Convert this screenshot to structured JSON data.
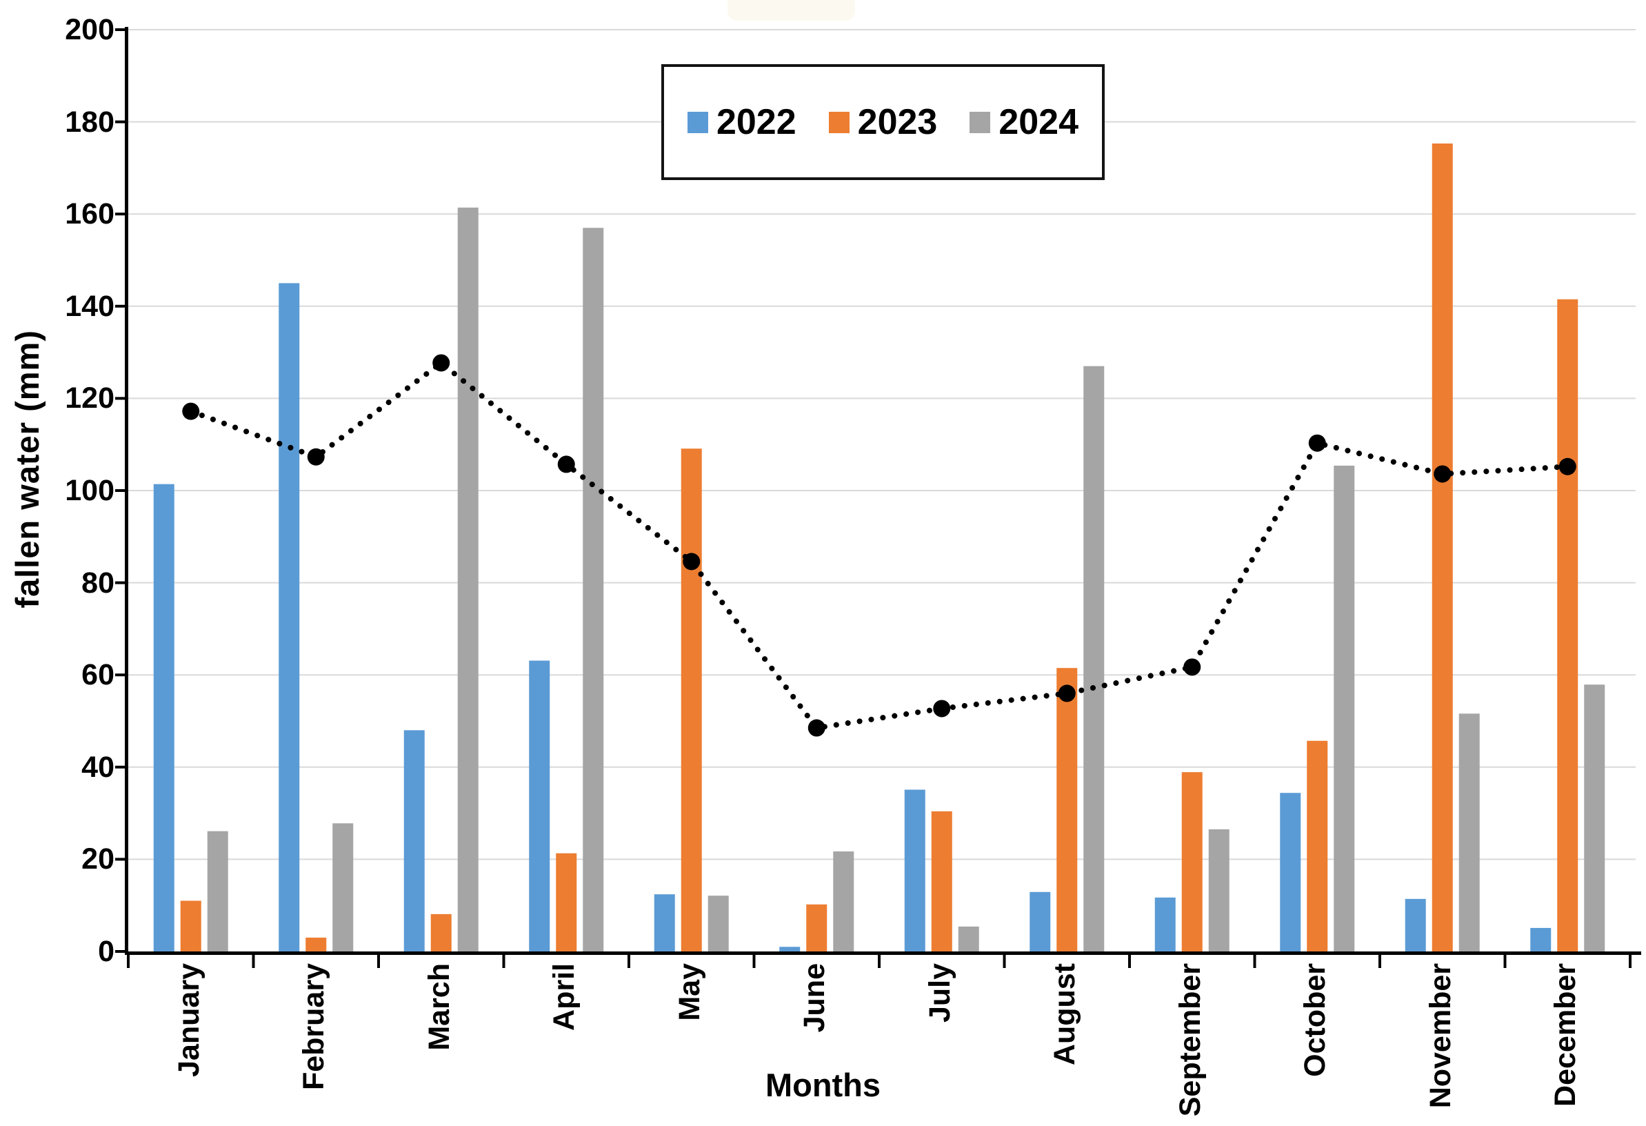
{
  "chart_data": {
    "type": "bar",
    "title": "",
    "xlabel": "Months",
    "ylabel": "fallen water (mm)",
    "ylim": [
      0,
      200
    ],
    "ytick_step": 20,
    "grid": true,
    "legend_position": "top-center",
    "legend_entries": [
      "2022",
      "2023",
      "2024"
    ],
    "categories": [
      "January",
      "February",
      "March",
      "April",
      "May",
      "June",
      "July",
      "August",
      "September",
      "October",
      "November",
      "December"
    ],
    "series": [
      {
        "name": "2022",
        "type": "bar",
        "color": "#5B9BD5",
        "values": [
          101.4,
          145.0,
          48.0,
          63.1,
          12.4,
          1.0,
          35.1,
          12.9,
          11.7,
          34.4,
          11.4,
          5.1
        ]
      },
      {
        "name": "2023",
        "type": "bar",
        "color": "#ED7D31",
        "values": [
          11.0,
          3.0,
          8.1,
          21.3,
          109.1,
          10.2,
          30.4,
          61.5,
          38.9,
          45.7,
          175.3,
          141.5
        ]
      },
      {
        "name": "2024",
        "type": "bar",
        "color": "#A5A5A5",
        "values": [
          26.1,
          27.8,
          161.4,
          157.0,
          12.1,
          21.7,
          5.4,
          127.0,
          26.5,
          105.4,
          51.6,
          57.9
        ]
      },
      {
        "name": "unlabeled dotted line (monthly mean)",
        "type": "line",
        "color": "#000000",
        "line_style": "dotted",
        "marker": "circle",
        "in_legend": false,
        "values": [
          117.2,
          107.3,
          127.7,
          105.7,
          84.6,
          48.5,
          52.7,
          56.0,
          61.7,
          110.3,
          103.6,
          105.2
        ]
      }
    ],
    "y_tick_labels": [
      "0",
      "20",
      "40",
      "60",
      "80",
      "100",
      "120",
      "140",
      "160",
      "180",
      "200"
    ]
  },
  "colors": {
    "gridline": "#D9D9D9",
    "axis": "#000000",
    "text": "#000000"
  }
}
